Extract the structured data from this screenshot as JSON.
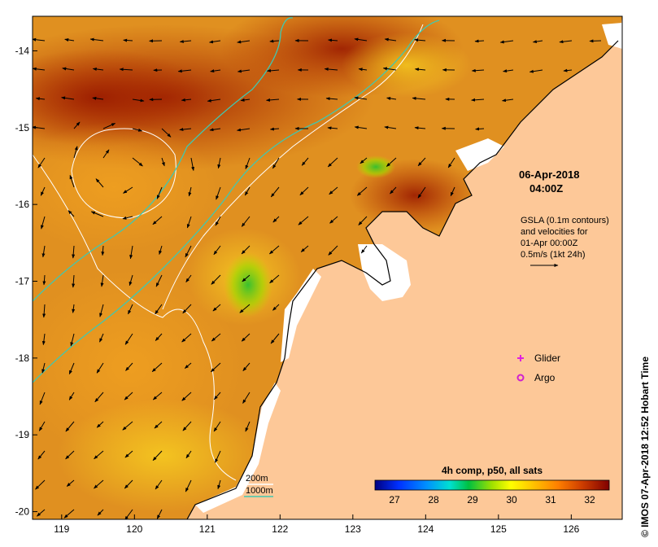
{
  "chart_data": {
    "type": "map",
    "x_ticks": [
      "119",
      "120",
      "121",
      "122",
      "123",
      "124",
      "125",
      "126"
    ],
    "y_ticks": [
      "-14",
      "-15",
      "-16",
      "-17",
      "-18",
      "-19",
      "-20"
    ],
    "xlim": [
      118.6,
      126.7
    ],
    "ylim": [
      -20.1,
      -13.55
    ],
    "date_label": "06-Apr-2018",
    "time_label": "04:00Z",
    "gsla_lines": [
      "GSLA (0.1m contours)",
      "and velocities for",
      "01-Apr 00:00Z",
      "0.5m/s (1kt 24h)"
    ],
    "legend": {
      "glider": "Glider",
      "argo": "Argo",
      "glider_color": "#e020e0",
      "argo_color": "#d020d0"
    },
    "isobaths": {
      "shallow_label": "200m",
      "deep_label": "1000m",
      "shallow_color": "#ffffff",
      "deep_color": "#40c8b0"
    },
    "colorbar": {
      "title": "4h comp, p50, all sats",
      "ticks": [
        "27",
        "28",
        "29",
        "30",
        "31",
        "32"
      ],
      "range": [
        26.5,
        32.5
      ],
      "colors": [
        "#000080",
        "#0000ff",
        "#0080ff",
        "#00e0e0",
        "#00c040",
        "#80e000",
        "#ffff00",
        "#ffc000",
        "#ff8000",
        "#e04000",
        "#a00000",
        "#800000"
      ]
    },
    "land_color": "#fdc898",
    "credit": "© IMOS 07-Apr-2018 12:52 Hobart Time"
  }
}
